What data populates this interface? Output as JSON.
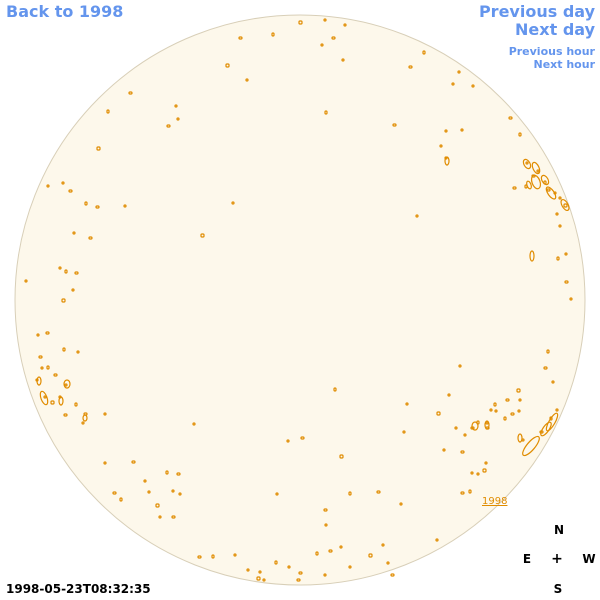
{
  "nav": {
    "back": "Back to 1998",
    "previous_day": "Previous day",
    "next_day": "Next day",
    "previous_hour": "Previous hour",
    "next_hour": "Next hour"
  },
  "disk": {
    "fill_color": "#fdf8eb",
    "border_color": "#d8cfb8",
    "contour_color": "#e08c00",
    "year_label": "1998"
  },
  "compass": {
    "north": "N",
    "east": "E",
    "center": "+",
    "west": "W",
    "south": "S"
  },
  "timestamp": "1998-05-23T08:32:35"
}
